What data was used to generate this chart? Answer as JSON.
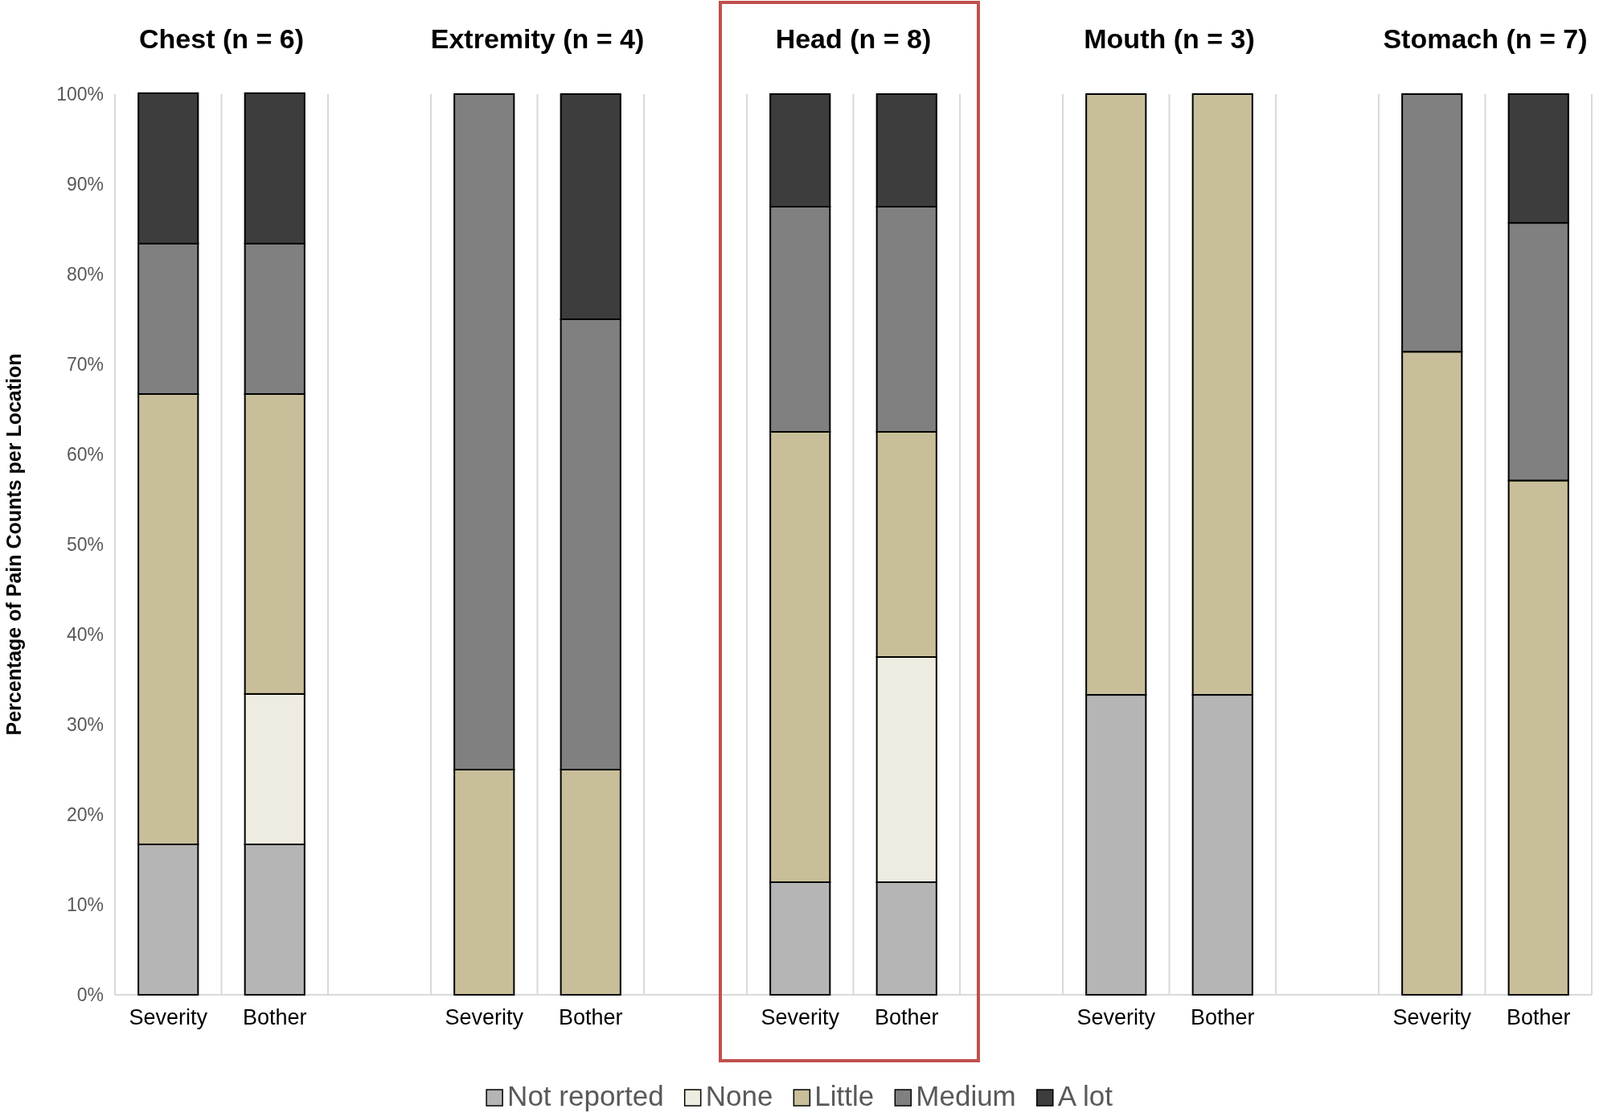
{
  "chart_data": [
    {
      "type": "bar",
      "title": "Chest (n = 6)",
      "ylabel": "Percentage of Pain Counts per Location",
      "categories": [
        "Severity",
        "Bother"
      ],
      "stacked": true,
      "grid": "x",
      "legend": "bottom",
      "ylim": [
        0,
        100
      ],
      "yticks": [
        {
          "value": 0,
          "label": "0%"
        },
        {
          "value": 10,
          "label": "10%"
        },
        {
          "value": 20,
          "label": "20%"
        },
        {
          "value": 30,
          "label": "30%"
        },
        {
          "value": 40,
          "label": "40%"
        },
        {
          "value": 50,
          "label": "50%"
        },
        {
          "value": 60,
          "label": "60%"
        },
        {
          "value": 70,
          "label": "70%"
        },
        {
          "value": 80,
          "label": "80%"
        },
        {
          "value": 90,
          "label": "90%"
        },
        {
          "value": 100,
          "label": "100%"
        }
      ],
      "series": [
        {
          "name": "Not reported",
          "color": "#b5b5b5",
          "values": [
            16.7,
            16.7
          ]
        },
        {
          "name": "None",
          "color": "#eeebe0",
          "values": [
            0,
            16.7
          ]
        },
        {
          "name": "Little",
          "color": "#c8bf9a",
          "values": [
            50,
            33.3
          ]
        },
        {
          "name": "Medium",
          "color": "#808080",
          "values": [
            16.7,
            16.7
          ]
        },
        {
          "name": "A lot",
          "color": "#3d3d3d",
          "values": [
            16.7,
            16.7
          ]
        }
      ]
    },
    {
      "type": "bar",
      "title": "Extremity (n = 4)",
      "categories": [
        "Severity",
        "Bother"
      ],
      "stacked": true,
      "grid": "x",
      "tick_labels": "x",
      "ylim": [
        0,
        100
      ],
      "series": [
        {
          "color": "#b5b5b5",
          "values": [
            0,
            0
          ]
        },
        {
          "color": "#eeebe0",
          "values": [
            0,
            0
          ]
        },
        {
          "color": "#c8bf9a",
          "values": [
            25,
            25
          ]
        },
        {
          "color": "#808080",
          "values": [
            75,
            50
          ]
        },
        {
          "color": "#3d3d3d",
          "values": [
            0,
            25
          ]
        }
      ]
    },
    {
      "type": "bar",
      "title": "Head (n = 8)",
      "categories": [
        "Severity",
        "Bother"
      ],
      "stacked": true,
      "grid": "x",
      "tick_labels": "x",
      "ylim": [
        0,
        100
      ],
      "series": [
        {
          "color": "#b5b5b5",
          "values": [
            12.5,
            12.5
          ]
        },
        {
          "color": "#eeebe0",
          "values": [
            0,
            25
          ]
        },
        {
          "color": "#c8bf9a",
          "values": [
            50,
            25
          ]
        },
        {
          "color": "#808080",
          "values": [
            25,
            25
          ]
        },
        {
          "color": "#3d3d3d",
          "values": [
            12.5,
            12.5
          ]
        }
      ]
    },
    {
      "type": "bar",
      "title": "Mouth (n = 3)",
      "categories": [
        "Severity",
        "Bother"
      ],
      "stacked": true,
      "grid": "x",
      "tick_labels": "x",
      "ylim": [
        0,
        100
      ],
      "series": [
        {
          "color": "#b5b5b5",
          "values": [
            33.3,
            33.3
          ]
        },
        {
          "color": "#eeebe0",
          "values": [
            0,
            0
          ]
        },
        {
          "color": "#c8bf9a",
          "values": [
            66.7,
            66.7
          ]
        },
        {
          "color": "#808080",
          "values": [
            0,
            0
          ]
        },
        {
          "color": "#3d3d3d",
          "values": [
            0,
            0
          ]
        }
      ]
    },
    {
      "type": "bar",
      "title": "Stomach (n = 7)",
      "categories": [
        "Severity",
        "Bother"
      ],
      "stacked": true,
      "grid": "x",
      "tick_labels": "x",
      "ylim": [
        0,
        100
      ],
      "series": [
        {
          "color": "#b5b5b5",
          "values": [
            0,
            0
          ]
        },
        {
          "color": "#eeebe0",
          "values": [
            0,
            0
          ]
        },
        {
          "color": "#c8bf9a",
          "values": [
            71.4,
            57.1
          ]
        },
        {
          "color": "#808080",
          "values": [
            28.6,
            28.6
          ]
        },
        {
          "color": "#3d3d3d",
          "values": [
            0,
            14.3
          ]
        }
      ]
    }
  ]
}
